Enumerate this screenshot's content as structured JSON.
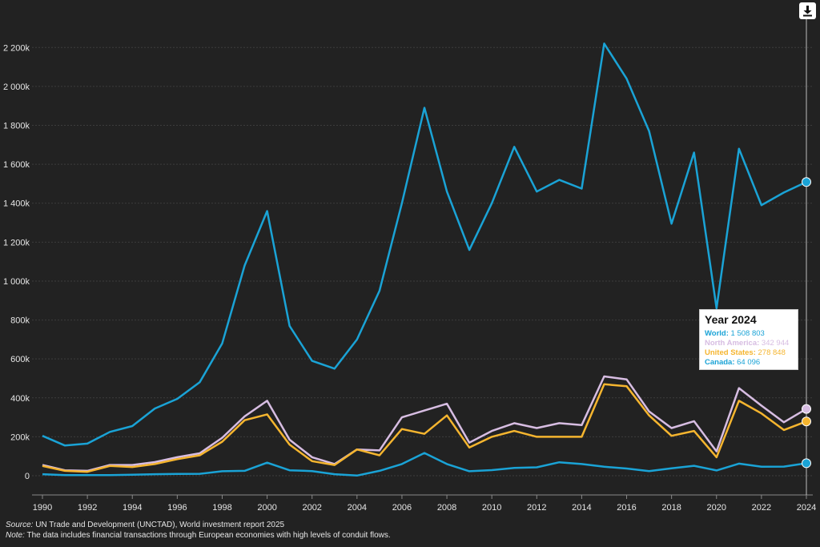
{
  "download_icon": "download-icon",
  "chart_data": {
    "type": "line",
    "title": "",
    "xlabel": "",
    "ylabel": "",
    "x": [
      1990,
      1991,
      1992,
      1993,
      1994,
      1995,
      1996,
      1997,
      1998,
      1999,
      2000,
      2001,
      2002,
      2003,
      2004,
      2005,
      2006,
      2007,
      2008,
      2009,
      2010,
      2011,
      2012,
      2013,
      2014,
      2015,
      2016,
      2017,
      2018,
      2019,
      2020,
      2021,
      2022,
      2023,
      2024
    ],
    "xlim": [
      1990,
      2024
    ],
    "ylim": [
      0,
      2300000
    ],
    "grid": true,
    "x_ticks": [
      "1990",
      "1992",
      "1994",
      "1996",
      "1998",
      "2000",
      "2002",
      "2004",
      "2006",
      "2008",
      "2010",
      "2012",
      "2014",
      "2016",
      "2018",
      "2020",
      "2022",
      "2024"
    ],
    "y_ticks": [
      {
        "value": 0,
        "label": "0"
      },
      {
        "value": 200000,
        "label": "200k"
      },
      {
        "value": 400000,
        "label": "400k"
      },
      {
        "value": 600000,
        "label": "600k"
      },
      {
        "value": 800000,
        "label": "800k"
      },
      {
        "value": 1000000,
        "label": "1 000k"
      },
      {
        "value": 1200000,
        "label": "1 200k"
      },
      {
        "value": 1400000,
        "label": "1 400k"
      },
      {
        "value": 1600000,
        "label": "1 600k"
      },
      {
        "value": 1800000,
        "label": "1 800k"
      },
      {
        "value": 2000000,
        "label": "2 000k"
      },
      {
        "value": 2200000,
        "label": "2 200k"
      }
    ],
    "series": [
      {
        "name": "World",
        "color": "#1aa3d6",
        "values": [
          205000,
          155000,
          165000,
          225000,
          255000,
          345000,
          395000,
          480000,
          680000,
          1080000,
          1360000,
          770000,
          590000,
          550000,
          700000,
          950000,
          1400000,
          1890000,
          1460000,
          1160000,
          1400000,
          1690000,
          1460000,
          1520000,
          1475000,
          2220000,
          2040000,
          1770000,
          1295000,
          1660000,
          860000,
          1680000,
          1390000,
          1455000,
          1508803
        ]
      },
      {
        "name": "North America",
        "color": "#d7bde2",
        "values": [
          55000,
          28000,
          25000,
          55000,
          55000,
          70000,
          95000,
          115000,
          195000,
          305000,
          385000,
          185000,
          95000,
          60000,
          135000,
          130000,
          300000,
          335000,
          370000,
          170000,
          230000,
          270000,
          245000,
          270000,
          260000,
          510000,
          495000,
          330000,
          245000,
          280000,
          125000,
          450000,
          360000,
          275000,
          342944
        ]
      },
      {
        "name": "United States",
        "color": "#f5b52f",
        "values": [
          50000,
          25000,
          20000,
          50000,
          45000,
          60000,
          85000,
          105000,
          175000,
          285000,
          315000,
          160000,
          75000,
          55000,
          135000,
          105000,
          240000,
          215000,
          310000,
          145000,
          200000,
          230000,
          200000,
          200000,
          200000,
          470000,
          460000,
          310000,
          205000,
          230000,
          95000,
          385000,
          320000,
          235000,
          278848
        ]
      },
      {
        "name": "Canada",
        "color": "#1aa3d6",
        "values": [
          8000,
          3000,
          3000,
          3000,
          5000,
          8000,
          9000,
          10000,
          23000,
          25000,
          67000,
          28000,
          24000,
          8000,
          1000,
          25000,
          60000,
          117000,
          60000,
          23000,
          29000,
          40000,
          43000,
          69000,
          60000,
          46000,
          37000,
          24000,
          38000,
          51000,
          27000,
          62000,
          46000,
          47000,
          64096
        ]
      }
    ],
    "highlight_year": 2024
  },
  "tooltip": {
    "title": "Year 2024",
    "rows": [
      {
        "label": "World:",
        "value": "1 508 803",
        "color": "#1aa3d6"
      },
      {
        "label": "North America:",
        "value": "342 944",
        "color": "#d7bde2"
      },
      {
        "label": "United States:",
        "value": "278 848",
        "color": "#f5b52f"
      },
      {
        "label": "Canada:",
        "value": "64 096",
        "color": "#1aa3d6"
      }
    ]
  },
  "footer": {
    "source_label": "Source:",
    "source_text": " UN Trade and Development (UNCTAD), World investment report 2025",
    "note_label": "Note:",
    "note_text": " The data includes financial transactions through European economies with high levels of conduit flows."
  }
}
